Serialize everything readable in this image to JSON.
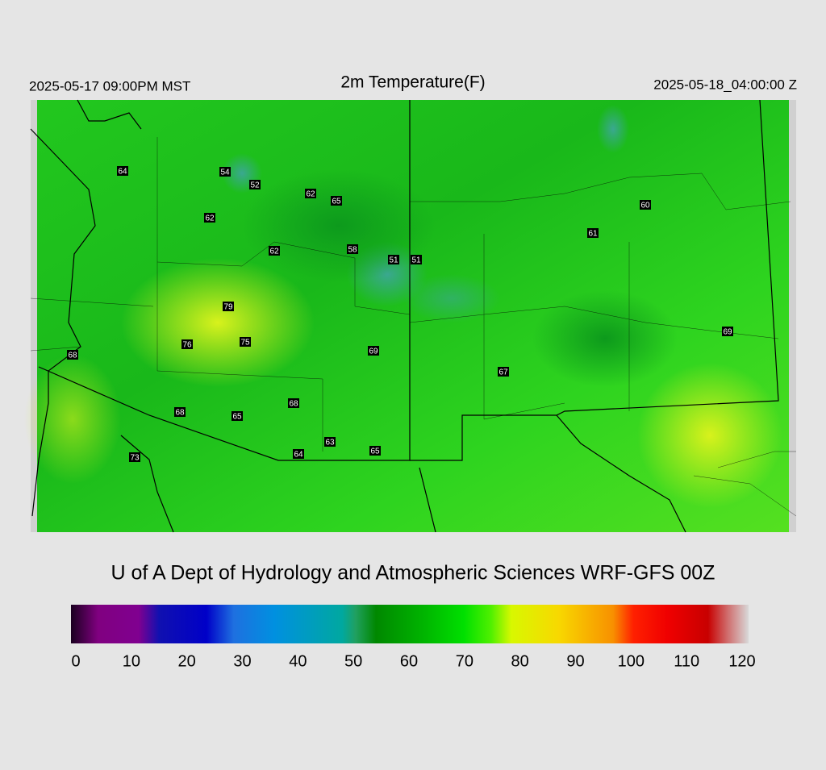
{
  "header": {
    "left": "2025-05-17 09:00PM MST",
    "title": "2m Temperature(F)",
    "right": "2025-05-18_04:00:00 Z"
  },
  "map": {
    "stations": [
      64,
      54,
      52,
      62,
      65,
      62,
      60,
      61,
      62,
      58,
      51,
      51,
      79,
      76,
      75,
      69,
      68,
      69,
      67,
      68,
      68,
      65,
      63,
      65,
      64,
      73
    ]
  },
  "footer": {
    "credit": "U of A Dept of Hydrology and Atmospheric Sciences WRF-GFS 00Z"
  },
  "colorbar": {
    "ticks": [
      0,
      10,
      20,
      30,
      40,
      50,
      60,
      70,
      80,
      90,
      100,
      110,
      120
    ]
  }
}
